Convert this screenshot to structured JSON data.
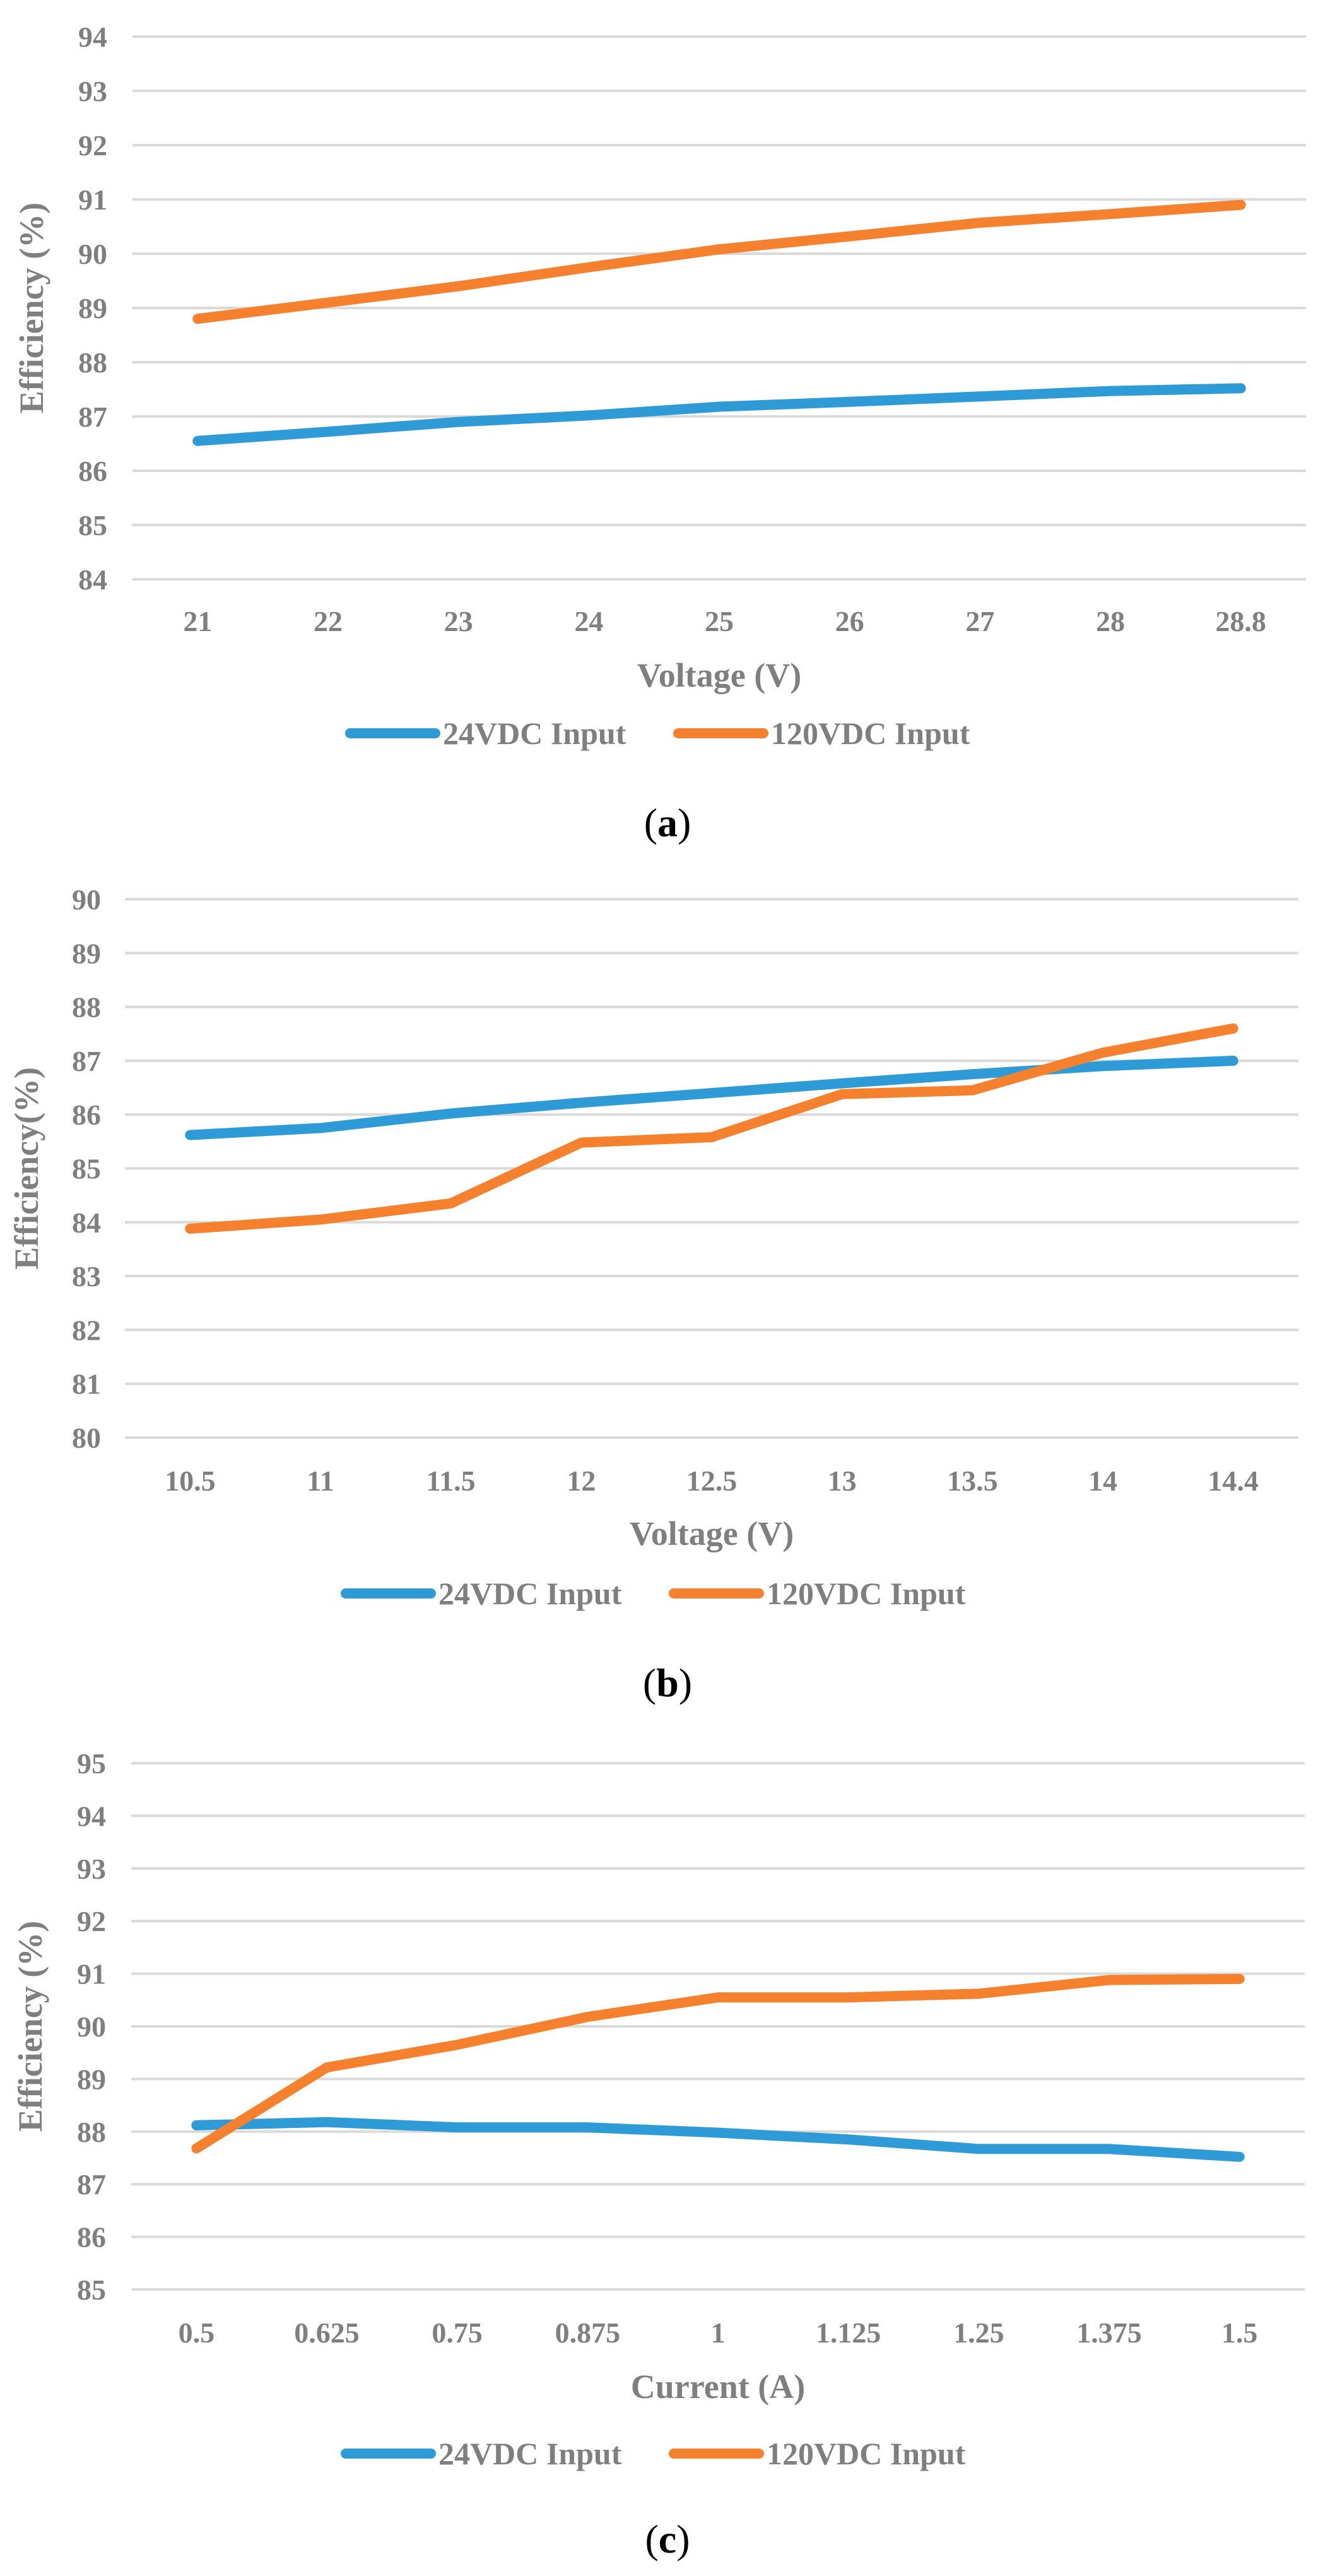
{
  "chart_data": [
    {
      "type": "line",
      "caption_letter": "a",
      "xlabel": "Voltage (V)",
      "ylabel": "Efficiency (%)",
      "categories": [
        "21",
        "22",
        "23",
        "24",
        "25",
        "26",
        "27",
        "28",
        "28.8"
      ],
      "ylim": [
        84,
        94
      ],
      "yticks": [
        84,
        85,
        86,
        87,
        88,
        89,
        90,
        91,
        92,
        93,
        94
      ],
      "grid": true,
      "legend_position": "bottom",
      "series": [
        {
          "name": "24VDC Input",
          "color": "#2e9bd6",
          "values": [
            86.55,
            86.72,
            86.9,
            87.02,
            87.18,
            87.27,
            87.37,
            87.47,
            87.52
          ]
        },
        {
          "name": "120VDC Input",
          "color": "#f5812e",
          "values": [
            88.8,
            89.1,
            89.4,
            89.75,
            90.08,
            90.32,
            90.57,
            90.73,
            90.9
          ]
        }
      ]
    },
    {
      "type": "line",
      "caption_letter": "b",
      "xlabel": "Voltage (V)",
      "ylabel": "Efficiency(%)",
      "categories": [
        "10.5",
        "11",
        "11.5",
        "12",
        "12.5",
        "13",
        "13.5",
        "14",
        "14.4"
      ],
      "ylim": [
        80,
        90
      ],
      "yticks": [
        80,
        81,
        82,
        83,
        84,
        85,
        86,
        87,
        88,
        89,
        90
      ],
      "grid": true,
      "legend_position": "bottom",
      "series": [
        {
          "name": "24VDC Input",
          "color": "#2e9bd6",
          "values": [
            85.62,
            85.75,
            86.02,
            86.22,
            86.4,
            86.58,
            86.75,
            86.9,
            87.0
          ]
        },
        {
          "name": "120VDC Input",
          "color": "#f5812e",
          "values": [
            83.88,
            84.05,
            84.35,
            85.48,
            85.58,
            86.38,
            86.45,
            87.15,
            87.6
          ]
        }
      ]
    },
    {
      "type": "line",
      "caption_letter": "c",
      "xlabel": "Current (A)",
      "ylabel": "Efficiency (%)",
      "categories": [
        "0.5",
        "0.625",
        "0.75",
        "0.875",
        "1",
        "1.125",
        "1.25",
        "1.375",
        "1.5"
      ],
      "ylim": [
        85,
        95
      ],
      "yticks": [
        85,
        86,
        87,
        88,
        89,
        90,
        91,
        92,
        93,
        94,
        95
      ],
      "grid": true,
      "legend_position": "bottom",
      "series": [
        {
          "name": "24VDC Input",
          "color": "#2e9bd6",
          "values": [
            88.12,
            88.18,
            88.08,
            88.08,
            87.98,
            87.85,
            87.67,
            87.67,
            87.52
          ]
        },
        {
          "name": "120VDC Input",
          "color": "#f5812e",
          "values": [
            87.68,
            89.22,
            89.65,
            90.18,
            90.55,
            90.55,
            90.62,
            90.88,
            90.9
          ]
        }
      ]
    }
  ]
}
